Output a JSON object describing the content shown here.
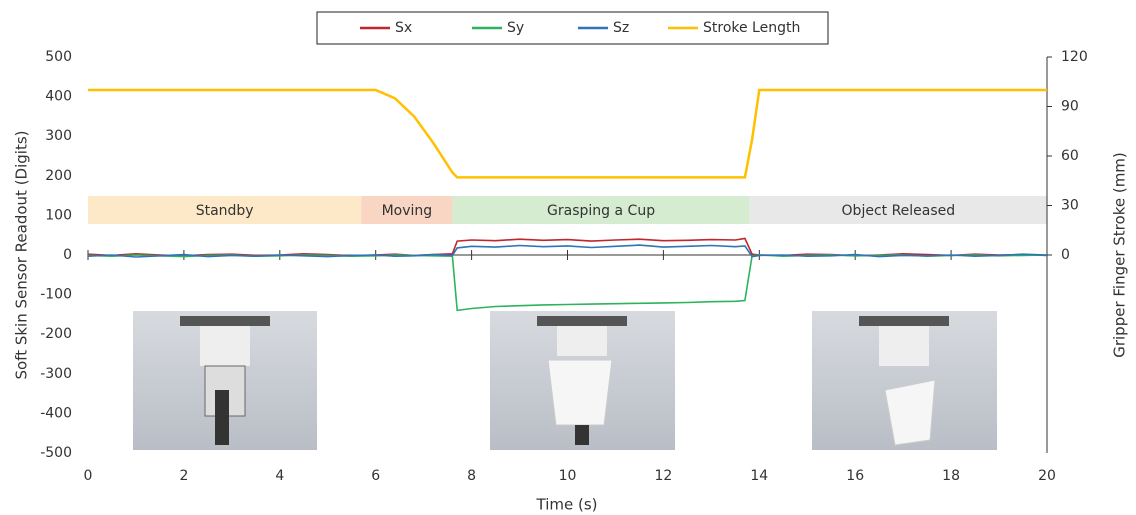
{
  "chart_data": {
    "type": "line",
    "x_label": "Time (s)",
    "y_label": "Soft Skin Sensor Readout (Digits)",
    "y2_label": "Gripper Finger Stroke (mm)",
    "x": [
      0,
      0.5,
      1,
      1.5,
      2,
      2.5,
      3,
      3.5,
      4,
      4.5,
      5,
      5.5,
      6,
      6.4,
      6.8,
      7.2,
      7.6,
      7.7,
      8,
      8.5,
      9,
      9.5,
      10,
      10.5,
      11,
      11.5,
      12,
      12.5,
      13,
      13.5,
      13.7,
      13.85,
      14,
      14.5,
      15,
      15.5,
      16,
      16.5,
      17,
      17.5,
      18,
      18.5,
      19,
      19.5,
      20
    ],
    "series": [
      {
        "name": "Sx",
        "color": "#c0272d",
        "values": [
          2,
          -1,
          3,
          0,
          -2,
          1,
          2,
          -1,
          0,
          3,
          1,
          -2,
          0,
          2,
          -1,
          1,
          3,
          35,
          38,
          36,
          40,
          37,
          39,
          35,
          38,
          40,
          36,
          37,
          39,
          38,
          42,
          2,
          0,
          -1,
          2,
          1,
          -2,
          0,
          3,
          1,
          -1,
          2,
          0,
          1,
          -1
        ]
      },
      {
        "name": "Sy",
        "color": "#2db35c",
        "values": [
          -1,
          -3,
          0,
          -2,
          -4,
          -1,
          0,
          -3,
          -2,
          0,
          -1,
          -3,
          -2,
          0,
          -1,
          -2,
          -3,
          -140,
          -135,
          -130,
          -128,
          -126,
          -125,
          -124,
          -123,
          -122,
          -121,
          -120,
          -118,
          -117,
          -115,
          -2,
          0,
          -3,
          -1,
          0,
          -2,
          -1,
          0,
          -3,
          -1,
          0,
          -2,
          -1,
          0
        ]
      },
      {
        "name": "Sz",
        "color": "#2e75b6",
        "values": [
          -3,
          0,
          -5,
          -2,
          1,
          -4,
          -1,
          -3,
          0,
          -2,
          -4,
          -1,
          0,
          -3,
          -2,
          1,
          -1,
          18,
          22,
          20,
          24,
          21,
          23,
          19,
          22,
          25,
          20,
          22,
          24,
          21,
          23,
          -4,
          -1,
          0,
          -3,
          -2,
          1,
          -4,
          -1,
          -2,
          0,
          -3,
          -1,
          2,
          0
        ]
      },
      {
        "name": "Stroke Length",
        "color": "#ffc000",
        "axis": "y2",
        "values": [
          100,
          100,
          100,
          100,
          100,
          100,
          100,
          100,
          100,
          100,
          100,
          100,
          100,
          95,
          84,
          68,
          50,
          47,
          47,
          47,
          47,
          47,
          47,
          47,
          47,
          47,
          47,
          47,
          47,
          47,
          47,
          70,
          100,
          100,
          100,
          100,
          100,
          100,
          100,
          100,
          100,
          100,
          100,
          100,
          100
        ]
      }
    ],
    "phases": [
      {
        "label": "Standby",
        "start": 0,
        "end": 5.7,
        "color": "#fde9c8"
      },
      {
        "label": "Moving",
        "start": 5.7,
        "end": 7.6,
        "color": "#f9d5c4"
      },
      {
        "label": "Grasping a Cup",
        "start": 7.6,
        "end": 13.8,
        "color": "#d5ecd0"
      },
      {
        "label": "Object Released",
        "start": 13.8,
        "end": 20,
        "color": "#e8e8e8"
      }
    ],
    "xlim": [
      0,
      20
    ],
    "xticks": [
      0,
      2,
      4,
      6,
      8,
      10,
      12,
      14,
      16,
      18,
      20
    ],
    "ylim": [
      -500,
      500
    ],
    "yticks": [
      -500,
      -400,
      -300,
      -200,
      -100,
      0,
      100,
      200,
      300,
      400,
      500
    ],
    "y2lim": [
      -120,
      120
    ],
    "y2ticks": [
      0,
      30,
      60,
      90,
      120
    ],
    "legend": "top"
  }
}
